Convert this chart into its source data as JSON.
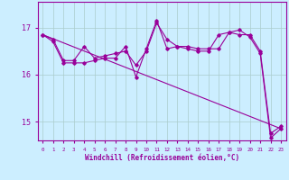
{
  "xlabel": "Windchill (Refroidissement éolien,°C)",
  "ylabel": "",
  "bg_color": "#cceeff",
  "line_color": "#990099",
  "grid_color": "#aacccc",
  "xlim": [
    -0.5,
    23.5
  ],
  "ylim": [
    14.6,
    17.55
  ],
  "yticks": [
    15,
    16,
    17
  ],
  "xticks": [
    0,
    1,
    2,
    3,
    4,
    5,
    6,
    7,
    8,
    9,
    10,
    11,
    12,
    13,
    14,
    15,
    16,
    17,
    18,
    19,
    20,
    21,
    22,
    23
  ],
  "series": [
    [
      0,
      16.85
    ],
    [
      1,
      16.75
    ],
    [
      2,
      16.3
    ],
    [
      3,
      16.3
    ],
    [
      4,
      16.6
    ],
    [
      5,
      16.35
    ],
    [
      6,
      16.4
    ],
    [
      7,
      16.45
    ],
    [
      8,
      16.5
    ],
    [
      9,
      16.2
    ],
    [
      10,
      16.5
    ],
    [
      11,
      17.1
    ],
    [
      12,
      16.75
    ],
    [
      13,
      16.6
    ],
    [
      14,
      16.6
    ],
    [
      15,
      16.55
    ],
    [
      16,
      16.55
    ],
    [
      17,
      16.55
    ],
    [
      18,
      16.9
    ],
    [
      19,
      16.85
    ],
    [
      20,
      16.85
    ],
    [
      21,
      16.5
    ],
    [
      22,
      14.75
    ],
    [
      23,
      14.9
    ]
  ],
  "series2": [
    [
      0,
      16.85
    ],
    [
      1,
      16.7
    ],
    [
      2,
      16.25
    ],
    [
      3,
      16.25
    ],
    [
      4,
      16.25
    ],
    [
      5,
      16.3
    ],
    [
      6,
      16.35
    ],
    [
      7,
      16.35
    ],
    [
      8,
      16.6
    ],
    [
      9,
      15.95
    ],
    [
      10,
      16.55
    ],
    [
      11,
      17.15
    ],
    [
      12,
      16.55
    ],
    [
      13,
      16.6
    ],
    [
      14,
      16.55
    ],
    [
      15,
      16.5
    ],
    [
      16,
      16.5
    ],
    [
      17,
      16.85
    ],
    [
      18,
      16.9
    ],
    [
      19,
      16.95
    ],
    [
      20,
      16.8
    ],
    [
      21,
      16.45
    ],
    [
      22,
      14.65
    ],
    [
      23,
      14.85
    ]
  ],
  "trend_x": [
    0,
    23
  ],
  "trend_y": [
    16.85,
    14.85
  ]
}
